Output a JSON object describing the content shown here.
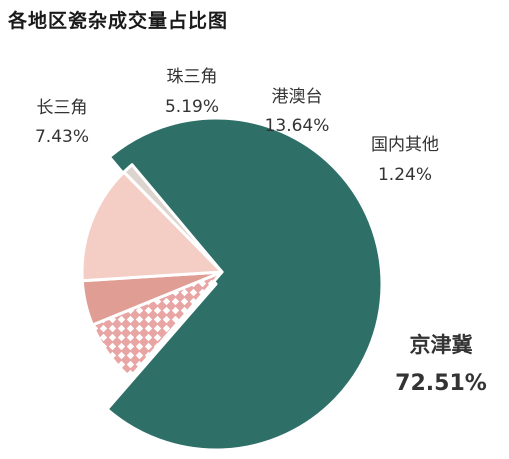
{
  "chart_data": {
    "type": "pie",
    "title": "各地区瓷杂成交量占比图",
    "slices": [
      {
        "name": "京津冀",
        "value": 72.51,
        "label": "72.51%",
        "color": "#2e7068",
        "pattern": "solid"
      },
      {
        "name": "长三角",
        "value": 7.43,
        "label": "7.43%",
        "color": "#e8a5a4",
        "pattern": "lattice"
      },
      {
        "name": "珠三角",
        "value": 5.19,
        "label": "5.19%",
        "color": "#e09d94",
        "pattern": "solid"
      },
      {
        "name": "港澳台",
        "value": 13.64,
        "label": "13.64%",
        "color": "#f4cdc5",
        "pattern": "solid"
      },
      {
        "name": "国内其他",
        "value": 1.24,
        "label": "1.24%",
        "color": "#ddd4cf",
        "pattern": "solid"
      }
    ],
    "highlight_color": "#2e7068",
    "label_color": "#333333",
    "exploded": "京津冀"
  }
}
